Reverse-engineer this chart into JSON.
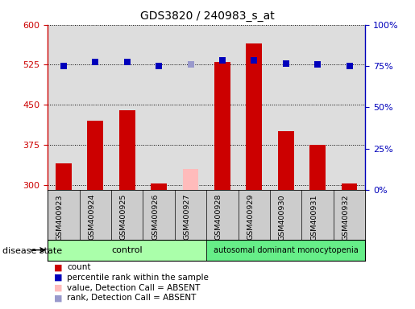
{
  "title": "GDS3820 / 240983_s_at",
  "samples": [
    "GSM400923",
    "GSM400924",
    "GSM400925",
    "GSM400926",
    "GSM400927",
    "GSM400928",
    "GSM400929",
    "GSM400930",
    "GSM400931",
    "GSM400932"
  ],
  "count_values": [
    340,
    420,
    440,
    303,
    null,
    530,
    565,
    400,
    375,
    302
  ],
  "count_absent": [
    null,
    null,
    null,
    null,
    330,
    null,
    null,
    null,
    null,
    null
  ],
  "rank_left_values": [
    523,
    530,
    530,
    523,
    null,
    533,
    533,
    527,
    525,
    522
  ],
  "rank_left_absent": [
    null,
    null,
    null,
    null,
    525,
    null,
    null,
    null,
    null,
    null
  ],
  "ylim_left": [
    290,
    600
  ],
  "ylim_right": [
    0,
    100
  ],
  "yticks_left": [
    300,
    375,
    450,
    525,
    600
  ],
  "yticks_right": [
    0,
    25,
    50,
    75,
    100
  ],
  "bar_color_present": "#cc0000",
  "bar_color_absent": "#ffbbbb",
  "dot_color_present": "#0000bb",
  "dot_color_absent": "#9999cc",
  "bar_width": 0.5,
  "dot_size": 40,
  "control_label": "control",
  "disease_label": "autosomal dominant monocytopenia",
  "disease_state_label": "disease state",
  "control_color": "#aaffaa",
  "disease_color": "#66ee88",
  "grid_color": "#000000",
  "bg_plot": "#dddddd",
  "bg_xtick": "#cccccc",
  "legend_items": [
    "count",
    "percentile rank within the sample",
    "value, Detection Call = ABSENT",
    "rank, Detection Call = ABSENT"
  ],
  "legend_colors": [
    "#cc0000",
    "#0000bb",
    "#ffbbbb",
    "#9999cc"
  ],
  "left_tick_color": "#cc0000",
  "right_tick_color": "#0000bb",
  "left_spine_color": "#cc0000",
  "right_spine_color": "#0000bb"
}
